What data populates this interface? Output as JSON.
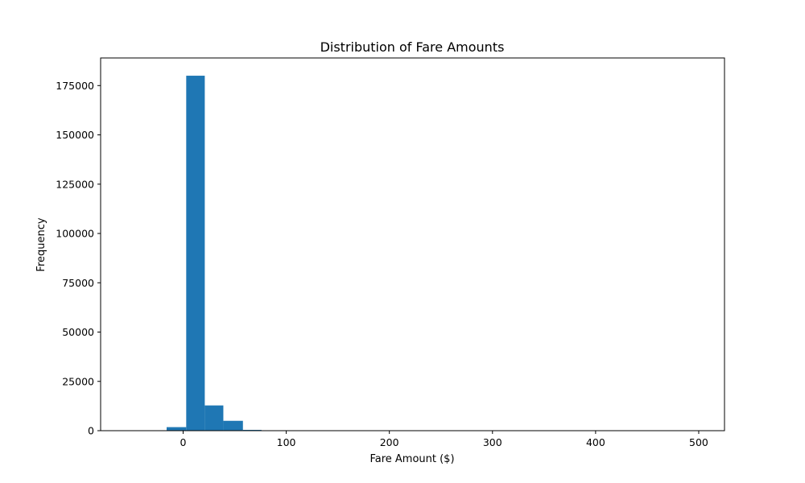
{
  "chart_data": {
    "type": "bar",
    "title": "Distribution of Fare Amounts",
    "xlabel": "Fare Amount ($)",
    "ylabel": "Frequency",
    "xlim": [
      -80,
      525
    ],
    "ylim": [
      0,
      189000
    ],
    "xticks": [
      0,
      100,
      200,
      300,
      400,
      500
    ],
    "yticks": [
      0,
      25000,
      50000,
      75000,
      100000,
      125000,
      150000,
      175000
    ],
    "bar_color": "#1f77b4",
    "grid": false,
    "bins": [
      {
        "x0": -52,
        "x1": -34,
        "value": 0
      },
      {
        "x0": -34,
        "x1": -16,
        "value": 0
      },
      {
        "x0": -16,
        "x1": 3,
        "value": 1800
      },
      {
        "x0": 3,
        "x1": 21,
        "value": 180000
      },
      {
        "x0": 21,
        "x1": 39,
        "value": 12800
      },
      {
        "x0": 39,
        "x1": 58,
        "value": 5000
      },
      {
        "x0": 58,
        "x1": 76,
        "value": 400
      },
      {
        "x0": 76,
        "x1": 95,
        "value": 100
      },
      {
        "x0": 95,
        "x1": 113,
        "value": 60
      }
    ]
  }
}
